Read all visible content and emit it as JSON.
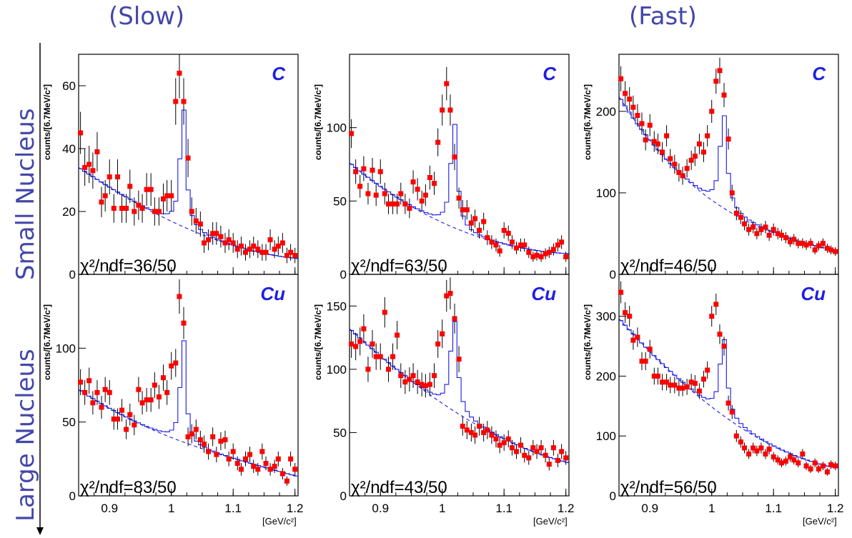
{
  "headers": {
    "left": "(Slow)",
    "right": "(Fast)"
  },
  "side_labels": {
    "top": "Small Nucleus",
    "bottom": "Large Nucleus"
  },
  "colors": {
    "data": "#ff0000",
    "fit": "#1a1ae6",
    "label_text": "#4347a8",
    "target_text": "#1f1fe0"
  },
  "chart_data": [
    {
      "type": "scatter",
      "target": "C",
      "ylabel": "counts/[6.7MeV/c²]",
      "xlabel": "[GeV/c²]",
      "chi2": "χ²/ndf=36/50",
      "xlim": [
        0.85,
        1.205
      ],
      "ylim": [
        0,
        70
      ],
      "xticks": [
        "0.9",
        "1",
        "1.1",
        "1.2"
      ],
      "yticks": [
        20,
        40,
        60
      ],
      "x": [
        0.853,
        0.86,
        0.867,
        0.873,
        0.88,
        0.887,
        0.893,
        0.9,
        0.907,
        0.913,
        0.92,
        0.927,
        0.933,
        0.94,
        0.947,
        0.953,
        0.96,
        0.967,
        0.973,
        0.98,
        0.987,
        0.993,
        1.0,
        1.007,
        1.013,
        1.02,
        1.027,
        1.033,
        1.04,
        1.047,
        1.053,
        1.06,
        1.067,
        1.073,
        1.08,
        1.087,
        1.093,
        1.1,
        1.107,
        1.113,
        1.12,
        1.127,
        1.133,
        1.14,
        1.147,
        1.153,
        1.16,
        1.167,
        1.173,
        1.18,
        1.187,
        1.193,
        1.2
      ],
      "y": [
        45,
        34,
        35,
        33,
        39,
        23,
        25,
        31,
        21,
        31,
        21,
        21,
        28,
        20,
        22,
        21,
        27,
        27,
        20,
        20,
        24,
        25,
        25,
        55,
        64,
        55,
        37,
        20,
        17,
        16,
        10,
        11,
        13,
        13,
        12,
        10,
        11,
        10,
        8,
        9,
        7,
        8,
        9,
        8,
        7,
        7,
        11,
        8,
        9,
        10,
        6,
        7,
        6
      ],
      "bg": [
        34,
        20,
        10,
        5
      ],
      "peak": {
        "mass": 1.019,
        "width": 0.0055,
        "height": 40
      }
    },
    {
      "type": "scatter",
      "target": "C",
      "ylabel": "counts/[6.7MeV/c²]",
      "xlabel": "[GeV/c²]",
      "chi2": "χ²/ndf=63/50",
      "xlim": [
        0.85,
        1.205
      ],
      "ylim": [
        0,
        150
      ],
      "xticks": [
        "0.9",
        "1",
        "1.1",
        "1.2"
      ],
      "yticks": [
        50,
        100
      ],
      "x": [
        0.853,
        0.86,
        0.867,
        0.873,
        0.88,
        0.887,
        0.893,
        0.9,
        0.907,
        0.913,
        0.92,
        0.927,
        0.933,
        0.94,
        0.947,
        0.953,
        0.96,
        0.967,
        0.973,
        0.98,
        0.987,
        0.993,
        1.0,
        1.007,
        1.013,
        1.02,
        1.027,
        1.033,
        1.04,
        1.047,
        1.053,
        1.06,
        1.067,
        1.073,
        1.08,
        1.087,
        1.093,
        1.1,
        1.107,
        1.113,
        1.12,
        1.127,
        1.133,
        1.14,
        1.147,
        1.153,
        1.16,
        1.167,
        1.173,
        1.18,
        1.187,
        1.193,
        1.2
      ],
      "y": [
        96,
        70,
        60,
        72,
        55,
        71,
        54,
        70,
        55,
        48,
        48,
        48,
        55,
        48,
        45,
        63,
        58,
        50,
        54,
        66,
        62,
        90,
        112,
        130,
        112,
        80,
        52,
        44,
        44,
        35,
        38,
        30,
        36,
        25,
        22,
        20,
        16,
        30,
        28,
        22,
        18,
        20,
        20,
        15,
        12,
        13,
        12,
        14,
        15,
        17,
        20,
        22,
        12
      ],
      "bg": [
        76,
        42,
        22,
        14
      ],
      "peak": {
        "mass": 1.019,
        "width": 0.006,
        "height": 75
      }
    },
    {
      "type": "scatter",
      "target": "C",
      "ylabel": "counts/[6.7MeV/c²]",
      "xlabel": "[GeV/c²]",
      "chi2": "χ²/ndf=46/50",
      "xlim": [
        0.85,
        1.205
      ],
      "ylim": [
        0,
        270
      ],
      "xticks": [
        "0.9",
        "1",
        "1.1",
        "1.2"
      ],
      "yticks": [
        100,
        200
      ],
      "x": [
        0.853,
        0.86,
        0.867,
        0.873,
        0.88,
        0.887,
        0.893,
        0.9,
        0.907,
        0.913,
        0.92,
        0.927,
        0.933,
        0.94,
        0.947,
        0.953,
        0.96,
        0.967,
        0.973,
        0.98,
        0.987,
        0.993,
        1.0,
        1.007,
        1.013,
        1.02,
        1.027,
        1.033,
        1.04,
        1.047,
        1.053,
        1.06,
        1.067,
        1.073,
        1.08,
        1.087,
        1.093,
        1.1,
        1.107,
        1.113,
        1.12,
        1.127,
        1.133,
        1.14,
        1.147,
        1.153,
        1.16,
        1.167,
        1.173,
        1.18,
        1.187,
        1.193,
        1.2
      ],
      "y": [
        240,
        222,
        215,
        205,
        195,
        185,
        165,
        183,
        163,
        160,
        150,
        170,
        142,
        135,
        125,
        121,
        130,
        140,
        145,
        160,
        150,
        170,
        200,
        237,
        250,
        220,
        166,
        100,
        75,
        70,
        62,
        55,
        58,
        50,
        55,
        58,
        48,
        55,
        50,
        48,
        45,
        40,
        43,
        38,
        38,
        36,
        38,
        30,
        35,
        38,
        32,
        30,
        28
      ],
      "bg": [
        218,
        110,
        55,
        28
      ],
      "peak": {
        "mass": 1.019,
        "width": 0.0065,
        "height": 120
      }
    },
    {
      "type": "scatter",
      "target": "Cu",
      "ylabel": "counts/[6.7MeV/c²]",
      "xlabel": "[GeV/c²]",
      "chi2": "χ²/ndf=83/50",
      "xlim": [
        0.85,
        1.205
      ],
      "ylim": [
        0,
        150
      ],
      "xticks": [
        "0.9",
        "1",
        "1.1",
        "1.2"
      ],
      "yticks": [
        50,
        100
      ],
      "x": [
        0.853,
        0.86,
        0.867,
        0.873,
        0.88,
        0.887,
        0.893,
        0.9,
        0.907,
        0.913,
        0.92,
        0.927,
        0.933,
        0.94,
        0.947,
        0.953,
        0.96,
        0.967,
        0.973,
        0.98,
        0.987,
        0.993,
        1.0,
        1.007,
        1.013,
        1.02,
        1.027,
        1.033,
        1.04,
        1.047,
        1.053,
        1.06,
        1.067,
        1.073,
        1.08,
        1.087,
        1.093,
        1.1,
        1.107,
        1.113,
        1.12,
        1.127,
        1.133,
        1.14,
        1.147,
        1.153,
        1.16,
        1.167,
        1.173,
        1.18,
        1.187,
        1.193,
        1.2
      ],
      "y": [
        77,
        70,
        78,
        63,
        70,
        60,
        72,
        70,
        52,
        52,
        58,
        45,
        55,
        48,
        72,
        63,
        65,
        65,
        75,
        67,
        80,
        70,
        88,
        90,
        135,
        117,
        40,
        42,
        45,
        38,
        35,
        30,
        40,
        28,
        37,
        38,
        25,
        30,
        22,
        18,
        25,
        28,
        20,
        18,
        30,
        22,
        18,
        20,
        25,
        15,
        10,
        25,
        18
      ],
      "bg": [
        72,
        45,
        27,
        13
      ],
      "peak": {
        "mass": 1.019,
        "width": 0.005,
        "height": 75
      }
    },
    {
      "type": "scatter",
      "target": "Cu",
      "ylabel": "counts/[6.7MeV/c²]",
      "xlabel": "[GeV/c²]",
      "chi2": "χ²/ndf=43/50",
      "xlim": [
        0.85,
        1.205
      ],
      "ylim": [
        0,
        175
      ],
      "xticks": [
        "0.9",
        "1",
        "1.1",
        "1.2"
      ],
      "yticks": [
        50,
        100,
        150
      ],
      "x": [
        0.853,
        0.86,
        0.867,
        0.873,
        0.88,
        0.887,
        0.893,
        0.9,
        0.907,
        0.913,
        0.92,
        0.927,
        0.933,
        0.94,
        0.947,
        0.953,
        0.96,
        0.967,
        0.973,
        0.98,
        0.987,
        0.993,
        1.0,
        1.007,
        1.013,
        1.02,
        1.027,
        1.033,
        1.04,
        1.047,
        1.053,
        1.06,
        1.067,
        1.073,
        1.08,
        1.087,
        1.093,
        1.1,
        1.107,
        1.113,
        1.12,
        1.127,
        1.133,
        1.14,
        1.147,
        1.153,
        1.16,
        1.167,
        1.173,
        1.18,
        1.187,
        1.193,
        1.2
      ],
      "y": [
        120,
        118,
        122,
        132,
        100,
        120,
        110,
        110,
        145,
        100,
        110,
        127,
        95,
        90,
        92,
        95,
        90,
        88,
        87,
        88,
        95,
        120,
        128,
        158,
        160,
        140,
        108,
        55,
        52,
        50,
        48,
        55,
        50,
        52,
        48,
        45,
        40,
        42,
        45,
        38,
        35,
        40,
        32,
        30,
        38,
        35,
        38,
        32,
        25,
        38,
        28,
        35,
        30
      ],
      "bg": [
        132,
        84,
        48,
        26
      ],
      "peak": {
        "mass": 1.019,
        "width": 0.0065,
        "height": 75
      }
    },
    {
      "type": "scatter",
      "target": "Cu",
      "ylabel": "counts/[6.7MeV/c²]",
      "xlabel": "[GeV/c²]",
      "chi2": "χ²/ndf=56/50",
      "xlim": [
        0.85,
        1.205
      ],
      "ylim": [
        0,
        370
      ],
      "xticks": [
        "0.9",
        "1",
        "1.1",
        "1.2"
      ],
      "yticks": [
        100,
        200,
        300
      ],
      "x": [
        0.853,
        0.86,
        0.867,
        0.873,
        0.88,
        0.887,
        0.893,
        0.9,
        0.907,
        0.913,
        0.92,
        0.927,
        0.933,
        0.94,
        0.947,
        0.953,
        0.96,
        0.967,
        0.973,
        0.98,
        0.987,
        0.993,
        1.0,
        1.007,
        1.013,
        1.02,
        1.027,
        1.033,
        1.04,
        1.047,
        1.053,
        1.06,
        1.067,
        1.073,
        1.08,
        1.087,
        1.093,
        1.1,
        1.107,
        1.113,
        1.12,
        1.127,
        1.133,
        1.14,
        1.147,
        1.153,
        1.16,
        1.167,
        1.173,
        1.18,
        1.187,
        1.193,
        1.2
      ],
      "y": [
        340,
        306,
        300,
        260,
        265,
        225,
        225,
        245,
        200,
        200,
        190,
        190,
        185,
        185,
        180,
        180,
        182,
        190,
        188,
        175,
        195,
        210,
        300,
        320,
        270,
        250,
        155,
        140,
        100,
        90,
        80,
        70,
        80,
        75,
        80,
        70,
        78,
        65,
        60,
        55,
        58,
        65,
        60,
        55,
        70,
        50,
        45,
        55,
        45,
        50,
        40,
        52,
        50
      ],
      "bg": [
        296,
        175,
        90,
        46
      ],
      "peak": {
        "mass": 1.019,
        "width": 0.0065,
        "height": 135
      }
    }
  ]
}
